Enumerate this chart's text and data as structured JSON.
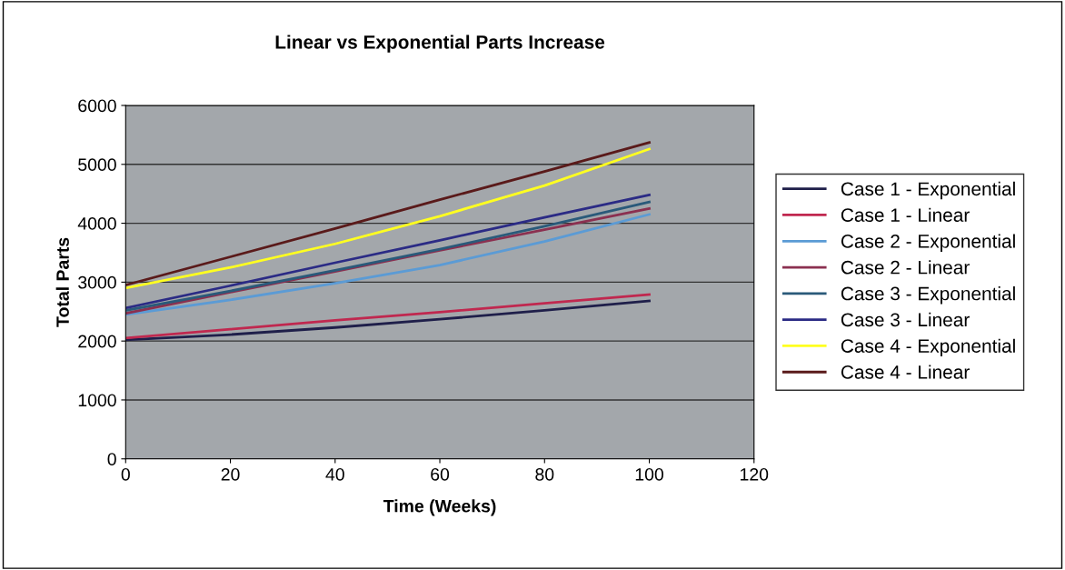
{
  "chart_data": {
    "type": "line",
    "title": "Linear vs Exponential Parts Increase",
    "xlabel": "Time (Weeks)",
    "ylabel": "Total Parts",
    "x": [
      0,
      20,
      40,
      60,
      80,
      100
    ],
    "xlim": [
      0,
      120
    ],
    "xticks": [
      0,
      20,
      40,
      60,
      80,
      100,
      120
    ],
    "ylim": [
      0,
      6000
    ],
    "yticks": [
      0,
      1000,
      2000,
      3000,
      4000,
      5000,
      6000
    ],
    "grid": "y",
    "legend": "right",
    "marker": "none",
    "line_style": "solid",
    "series": [
      {
        "name": "Case 1 - Exponential",
        "color": "#1f1f4a",
        "values": [
          2020,
          2110,
          2230,
          2370,
          2520,
          2680
        ]
      },
      {
        "name": "Case 1 - Linear",
        "color": "#c0284f",
        "values": [
          2050,
          2200,
          2350,
          2490,
          2640,
          2790
        ]
      },
      {
        "name": "Case 2 - Exponential",
        "color": "#5b9bd5",
        "values": [
          2450,
          2700,
          2980,
          3290,
          3690,
          4150
        ]
      },
      {
        "name": "Case 2 - Linear",
        "color": "#8b3050",
        "values": [
          2470,
          2830,
          3180,
          3540,
          3890,
          4250
        ]
      },
      {
        "name": "Case 3 - Exponential",
        "color": "#2a5a7a",
        "values": [
          2520,
          2850,
          3200,
          3560,
          3950,
          4360
        ]
      },
      {
        "name": "Case 3 - Linear",
        "color": "#2b2b85",
        "values": [
          2560,
          2940,
          3330,
          3710,
          4100,
          4480
        ]
      },
      {
        "name": "Case 4 - Exponential",
        "color": "#ffff20",
        "values": [
          2900,
          3250,
          3650,
          4120,
          4640,
          5260
        ]
      },
      {
        "name": "Case 4 - Linear",
        "color": "#5a1a1a",
        "values": [
          2950,
          3430,
          3910,
          4400,
          4880,
          5370
        ]
      }
    ]
  }
}
